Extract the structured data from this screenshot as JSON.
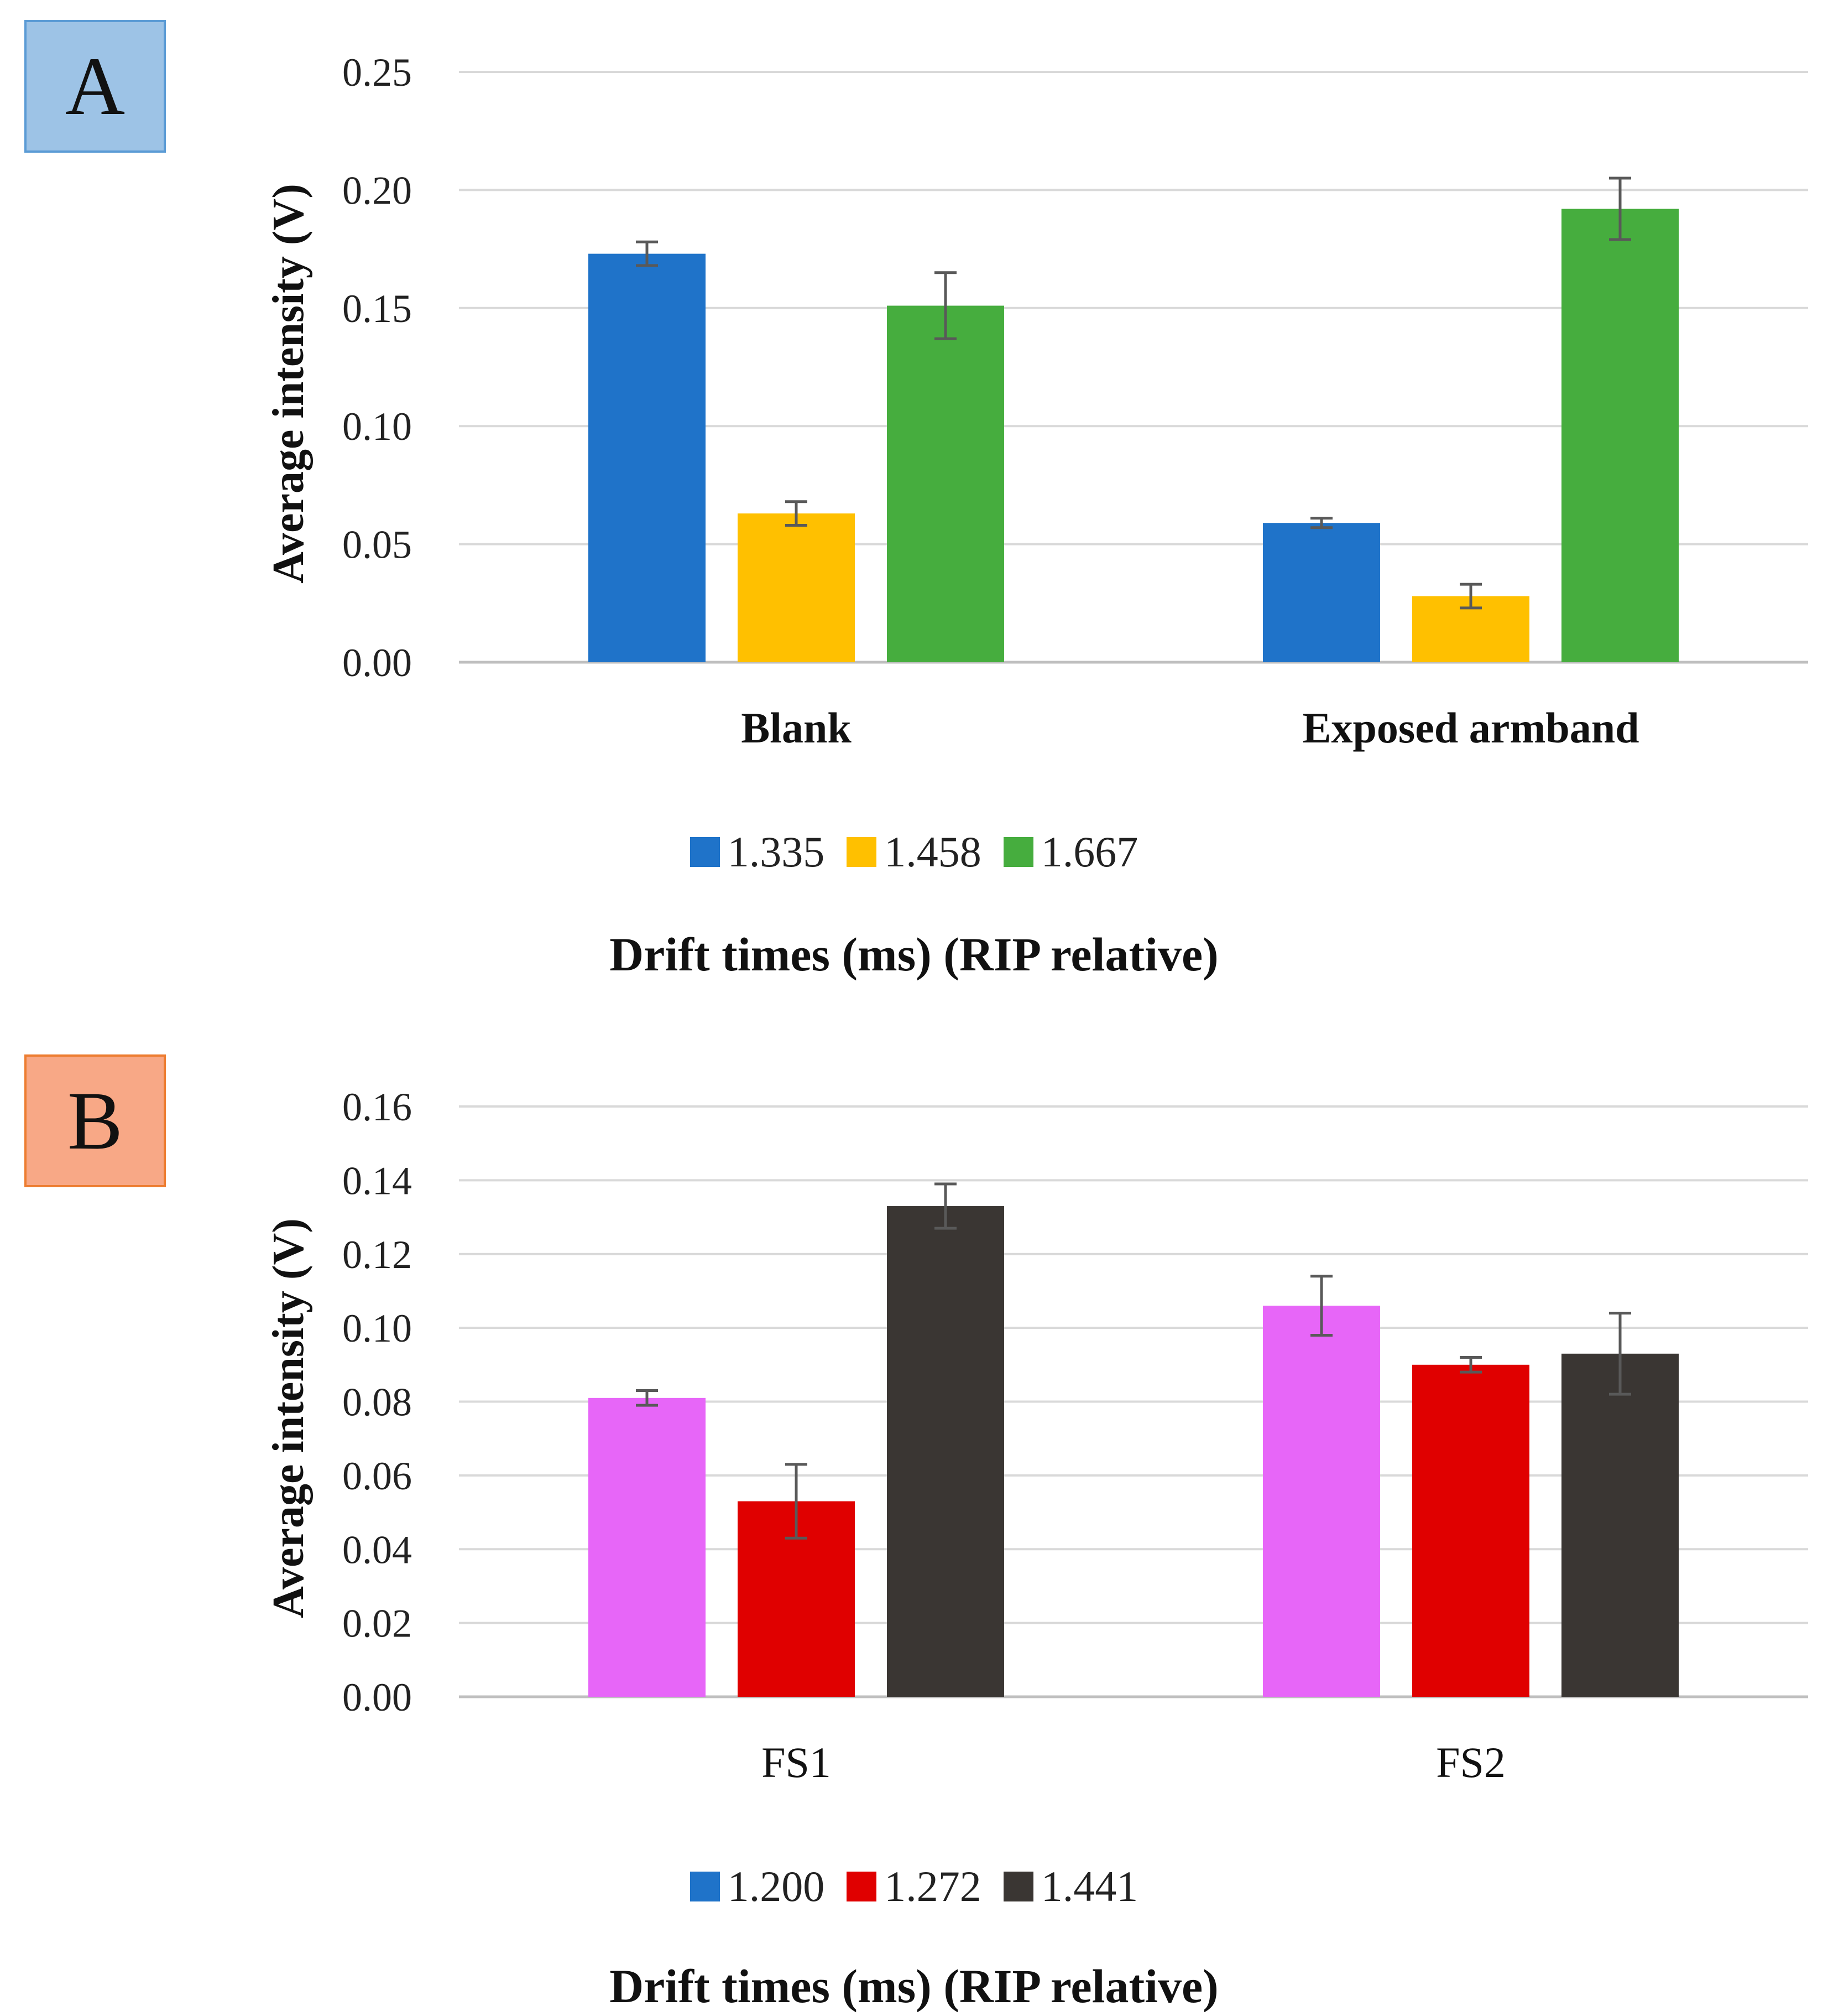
{
  "chart_data": [
    {
      "panel": "A",
      "panel_label_bg": "#9dc3e6",
      "panel_label_border": "#5b9bd5",
      "type": "bar",
      "ylabel": "Average intensity (V)",
      "xlabel": "Drift times (ms) (RIP relative)",
      "ylim": [
        0,
        0.25
      ],
      "yticks": [
        "0.00",
        "0.05",
        "0.10",
        "0.15",
        "0.20",
        "0.25"
      ],
      "categories": [
        "Blank",
        "Exposed armband"
      ],
      "category_bold": true,
      "series": [
        {
          "name": "1.335",
          "color": "#1f73c9",
          "values": [
            0.173,
            0.059
          ],
          "errors": [
            0.005,
            0.002
          ]
        },
        {
          "name": "1.458",
          "color": "#ffc000",
          "values": [
            0.063,
            0.028
          ],
          "errors": [
            0.005,
            0.005
          ]
        },
        {
          "name": "1.667",
          "color": "#46ad3e",
          "values": [
            0.151,
            0.192
          ],
          "errors": [
            0.014,
            0.013
          ]
        }
      ]
    },
    {
      "panel": "B",
      "panel_label_bg": "#f8a886",
      "panel_label_border": "#ed7d31",
      "type": "bar",
      "ylabel": "Average intensity (V)",
      "xlabel": "Drift times (ms) (RIP relative)",
      "ylim": [
        0,
        0.16
      ],
      "yticks": [
        "0.00",
        "0.02",
        "0.04",
        "0.06",
        "0.08",
        "0.10",
        "0.12",
        "0.14",
        "0.16"
      ],
      "categories": [
        "FS1",
        "FS2"
      ],
      "category_bold": false,
      "series": [
        {
          "name": "1.200",
          "color": "#e766f8",
          "legend_color": "#1f73c9",
          "values": [
            0.081,
            0.106
          ],
          "errors": [
            0.002,
            0.008
          ]
        },
        {
          "name": "1.272",
          "color": "#e00000",
          "values": [
            0.053,
            0.09
          ],
          "errors": [
            0.01,
            0.002
          ]
        },
        {
          "name": "1.441",
          "color": "#3a3633",
          "values": [
            0.133,
            0.093
          ],
          "errors": [
            0.006,
            0.011
          ]
        }
      ]
    }
  ]
}
